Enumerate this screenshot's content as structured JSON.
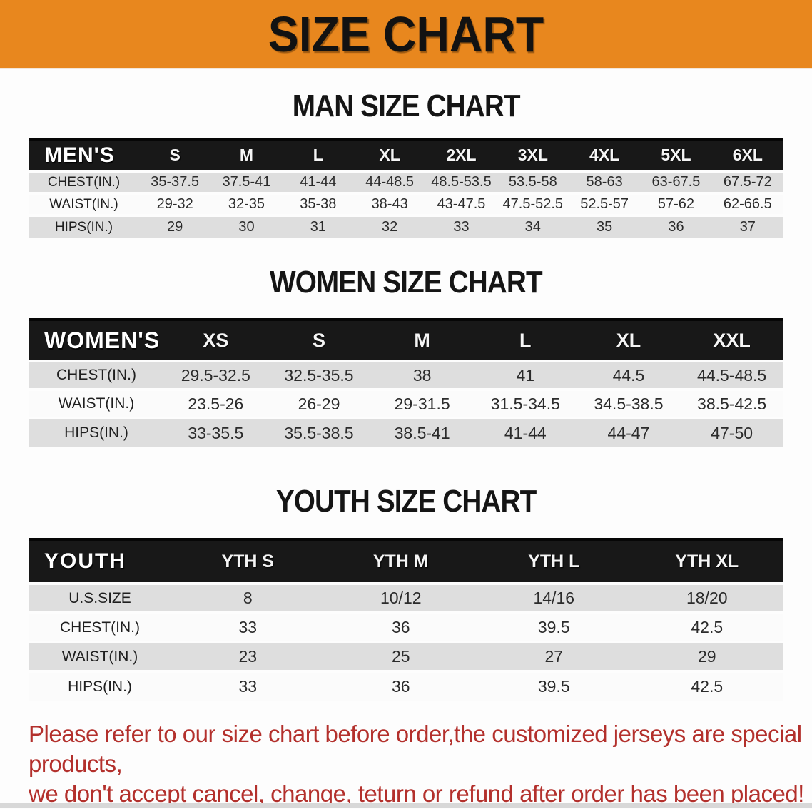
{
  "banner": {
    "title": "SIZE CHART",
    "bg_color": "#E8871E",
    "text_color": "#121212"
  },
  "colors": {
    "table_header_black": "#181818",
    "row_gray": "#DEDEDE",
    "row_white": "#FBFBFB",
    "disclaimer_red": "#B3302C"
  },
  "sections": [
    {
      "id": "men",
      "heading": "MAN SIZE CHART",
      "group_label": "MEN'S",
      "columns": [
        "S",
        "M",
        "L",
        "XL",
        "2XL",
        "3XL",
        "4XL",
        "5XL",
        "6XL"
      ],
      "rows": [
        {
          "label": "CHEST(IN.)",
          "values": [
            "35-37.5",
            "37.5-41",
            "41-44",
            "44-48.5",
            "48.5-53.5",
            "53.5-58",
            "58-63",
            "63-67.5",
            "67.5-72"
          ]
        },
        {
          "label": "WAIST(IN.)",
          "values": [
            "29-32",
            "32-35",
            "35-38",
            "38-43",
            "43-47.5",
            "47.5-52.5",
            "52.5-57",
            "57-62",
            "62-66.5"
          ]
        },
        {
          "label": "HIPS(IN.)",
          "values": [
            "29",
            "30",
            "31",
            "32",
            "33",
            "34",
            "35",
            "36",
            "37"
          ]
        }
      ]
    },
    {
      "id": "women",
      "heading": "WOMEN SIZE CHART",
      "group_label": "WOMEN'S",
      "columns": [
        "XS",
        "S",
        "M",
        "L",
        "XL",
        "XXL"
      ],
      "rows": [
        {
          "label": "CHEST(IN.)",
          "values": [
            "29.5-32.5",
            "32.5-35.5",
            "38",
            "41",
            "44.5",
            "44.5-48.5"
          ]
        },
        {
          "label": "WAIST(IN.)",
          "values": [
            "23.5-26",
            "26-29",
            "29-31.5",
            "31.5-34.5",
            "34.5-38.5",
            "38.5-42.5"
          ]
        },
        {
          "label": "HIPS(IN.)",
          "values": [
            "33-35.5",
            "35.5-38.5",
            "38.5-41",
            "41-44",
            "44-47",
            "47-50"
          ]
        }
      ]
    },
    {
      "id": "youth",
      "heading": "YOUTH SIZE CHART",
      "group_label": "YOUTH",
      "columns": [
        "YTH S",
        "YTH M",
        "YTH L",
        "YTH XL"
      ],
      "rows": [
        {
          "label": "U.S.SIZE",
          "values": [
            "8",
            "10/12",
            "14/16",
            "18/20"
          ]
        },
        {
          "label": "CHEST(IN.)",
          "values": [
            "33",
            "36",
            "39.5",
            "42.5"
          ]
        },
        {
          "label": "WAIST(IN.)",
          "values": [
            "23",
            "25",
            "27",
            "29"
          ]
        },
        {
          "label": "HIPS(IN.)",
          "values": [
            "33",
            "36",
            "39.5",
            "42.5"
          ]
        }
      ]
    }
  ],
  "disclaimer": {
    "line1": "Please refer to our size chart before order,the customized jerseys are special products,",
    "line2": "we don't accept cancel, change, teturn or refund after order has been placed!"
  }
}
